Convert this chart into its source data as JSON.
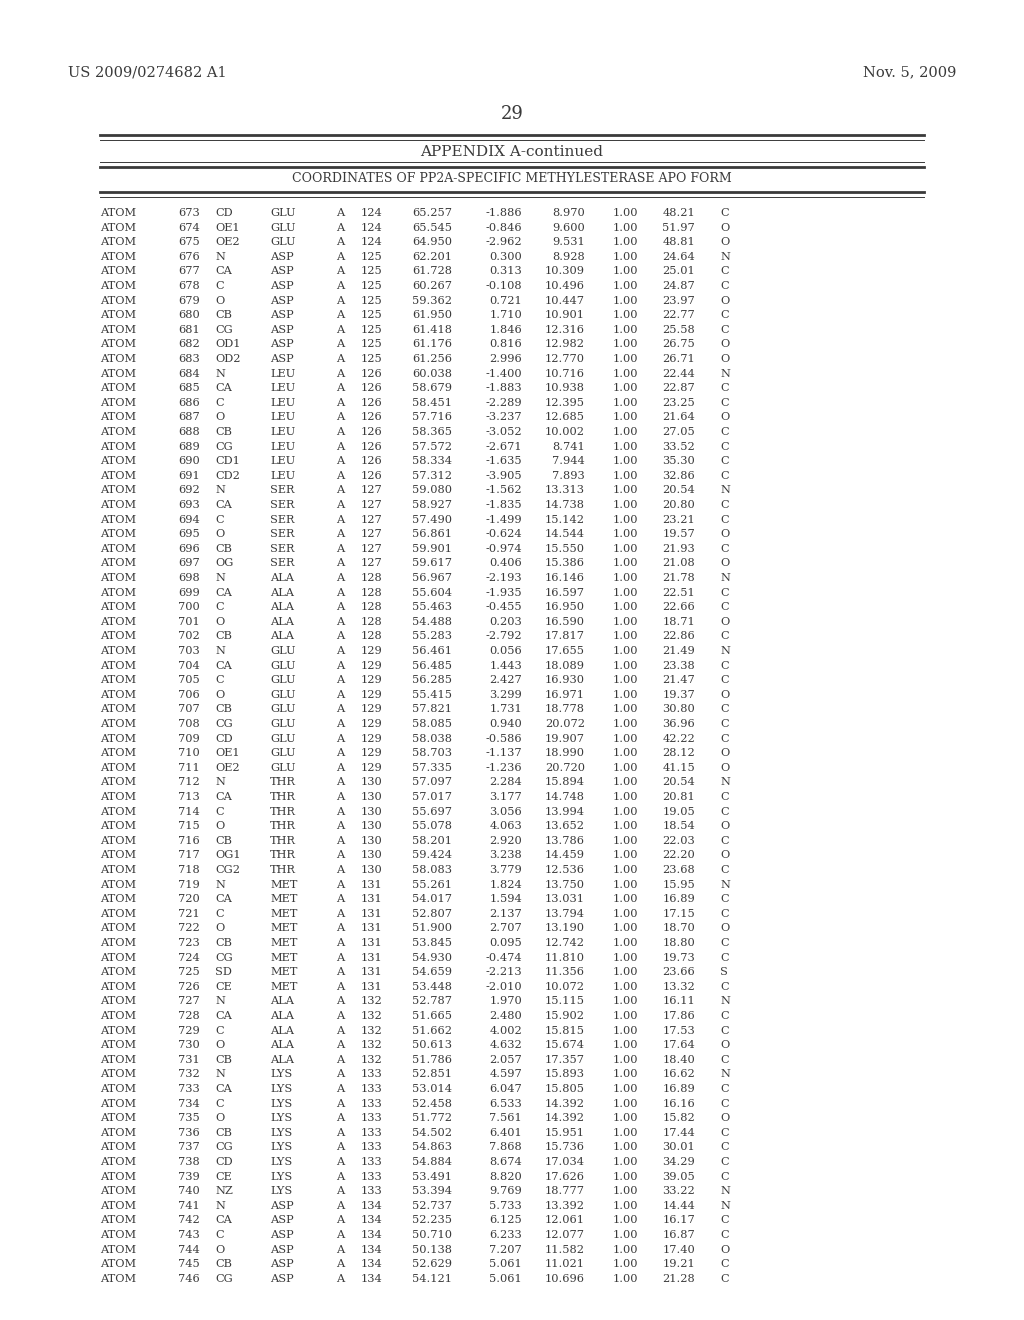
{
  "header_left": "US 2009/0274682 A1",
  "header_right": "Nov. 5, 2009",
  "page_number": "29",
  "appendix_title": "APPENDIX A-continued",
  "table_title": "COORDINATES OF PP2A-SPECIFIC METHYLESTERASE APO FORM",
  "bg_color": "#ffffff",
  "text_color": "#3a3a3a",
  "rows": [
    [
      "ATOM",
      "673",
      "CD",
      "GLU",
      "A",
      "124",
      "65.257",
      "-1.886",
      "8.970",
      "1.00",
      "48.21",
      "C"
    ],
    [
      "ATOM",
      "674",
      "OE1",
      "GLU",
      "A",
      "124",
      "65.545",
      "-0.846",
      "9.600",
      "1.00",
      "51.97",
      "O"
    ],
    [
      "ATOM",
      "675",
      "OE2",
      "GLU",
      "A",
      "124",
      "64.950",
      "-2.962",
      "9.531",
      "1.00",
      "48.81",
      "O"
    ],
    [
      "ATOM",
      "676",
      "N",
      "ASP",
      "A",
      "125",
      "62.201",
      "0.300",
      "8.928",
      "1.00",
      "24.64",
      "N"
    ],
    [
      "ATOM",
      "677",
      "CA",
      "ASP",
      "A",
      "125",
      "61.728",
      "0.313",
      "10.309",
      "1.00",
      "25.01",
      "C"
    ],
    [
      "ATOM",
      "678",
      "C",
      "ASP",
      "A",
      "125",
      "60.267",
      "-0.108",
      "10.496",
      "1.00",
      "24.87",
      "C"
    ],
    [
      "ATOM",
      "679",
      "O",
      "ASP",
      "A",
      "125",
      "59.362",
      "0.721",
      "10.447",
      "1.00",
      "23.97",
      "O"
    ],
    [
      "ATOM",
      "680",
      "CB",
      "ASP",
      "A",
      "125",
      "61.950",
      "1.710",
      "10.901",
      "1.00",
      "22.77",
      "C"
    ],
    [
      "ATOM",
      "681",
      "CG",
      "ASP",
      "A",
      "125",
      "61.418",
      "1.846",
      "12.316",
      "1.00",
      "25.58",
      "C"
    ],
    [
      "ATOM",
      "682",
      "OD1",
      "ASP",
      "A",
      "125",
      "61.176",
      "0.816",
      "12.982",
      "1.00",
      "26.75",
      "O"
    ],
    [
      "ATOM",
      "683",
      "OD2",
      "ASP",
      "A",
      "125",
      "61.256",
      "2.996",
      "12.770",
      "1.00",
      "26.71",
      "O"
    ],
    [
      "ATOM",
      "684",
      "N",
      "LEU",
      "A",
      "126",
      "60.038",
      "-1.400",
      "10.716",
      "1.00",
      "22.44",
      "N"
    ],
    [
      "ATOM",
      "685",
      "CA",
      "LEU",
      "A",
      "126",
      "58.679",
      "-1.883",
      "10.938",
      "1.00",
      "22.87",
      "C"
    ],
    [
      "ATOM",
      "686",
      "C",
      "LEU",
      "A",
      "126",
      "58.451",
      "-2.289",
      "12.395",
      "1.00",
      "23.25",
      "C"
    ],
    [
      "ATOM",
      "687",
      "O",
      "LEU",
      "A",
      "126",
      "57.716",
      "-3.237",
      "12.685",
      "1.00",
      "21.64",
      "O"
    ],
    [
      "ATOM",
      "688",
      "CB",
      "LEU",
      "A",
      "126",
      "58.365",
      "-3.052",
      "10.002",
      "1.00",
      "27.05",
      "C"
    ],
    [
      "ATOM",
      "689",
      "CG",
      "LEU",
      "A",
      "126",
      "57.572",
      "-2.671",
      "8.741",
      "1.00",
      "33.52",
      "C"
    ],
    [
      "ATOM",
      "690",
      "CD1",
      "LEU",
      "A",
      "126",
      "58.334",
      "-1.635",
      "7.944",
      "1.00",
      "35.30",
      "C"
    ],
    [
      "ATOM",
      "691",
      "CD2",
      "LEU",
      "A",
      "126",
      "57.312",
      "-3.905",
      "7.893",
      "1.00",
      "32.86",
      "C"
    ],
    [
      "ATOM",
      "692",
      "N",
      "SER",
      "A",
      "127",
      "59.080",
      "-1.562",
      "13.313",
      "1.00",
      "20.54",
      "N"
    ],
    [
      "ATOM",
      "693",
      "CA",
      "SER",
      "A",
      "127",
      "58.927",
      "-1.835",
      "14.738",
      "1.00",
      "20.80",
      "C"
    ],
    [
      "ATOM",
      "694",
      "C",
      "SER",
      "A",
      "127",
      "57.490",
      "-1.499",
      "15.142",
      "1.00",
      "23.21",
      "C"
    ],
    [
      "ATOM",
      "695",
      "O",
      "SER",
      "A",
      "127",
      "56.861",
      "-0.624",
      "14.544",
      "1.00",
      "19.57",
      "O"
    ],
    [
      "ATOM",
      "696",
      "CB",
      "SER",
      "A",
      "127",
      "59.901",
      "-0.974",
      "15.550",
      "1.00",
      "21.93",
      "C"
    ],
    [
      "ATOM",
      "697",
      "OG",
      "SER",
      "A",
      "127",
      "59.617",
      "0.406",
      "15.386",
      "1.00",
      "21.08",
      "O"
    ],
    [
      "ATOM",
      "698",
      "N",
      "ALA",
      "A",
      "128",
      "56.967",
      "-2.193",
      "16.146",
      "1.00",
      "21.78",
      "N"
    ],
    [
      "ATOM",
      "699",
      "CA",
      "ALA",
      "A",
      "128",
      "55.604",
      "-1.935",
      "16.597",
      "1.00",
      "22.51",
      "C"
    ],
    [
      "ATOM",
      "700",
      "C",
      "ALA",
      "A",
      "128",
      "55.463",
      "-0.455",
      "16.950",
      "1.00",
      "22.66",
      "C"
    ],
    [
      "ATOM",
      "701",
      "O",
      "ALA",
      "A",
      "128",
      "54.488",
      "0.203",
      "16.590",
      "1.00",
      "18.71",
      "O"
    ],
    [
      "ATOM",
      "702",
      "CB",
      "ALA",
      "A",
      "128",
      "55.283",
      "-2.792",
      "17.817",
      "1.00",
      "22.86",
      "C"
    ],
    [
      "ATOM",
      "703",
      "N",
      "GLU",
      "A",
      "129",
      "56.461",
      "0.056",
      "17.655",
      "1.00",
      "21.49",
      "N"
    ],
    [
      "ATOM",
      "704",
      "CA",
      "GLU",
      "A",
      "129",
      "56.485",
      "1.443",
      "18.089",
      "1.00",
      "23.38",
      "C"
    ],
    [
      "ATOM",
      "705",
      "C",
      "GLU",
      "A",
      "129",
      "56.285",
      "2.427",
      "16.930",
      "1.00",
      "21.47",
      "C"
    ],
    [
      "ATOM",
      "706",
      "O",
      "GLU",
      "A",
      "129",
      "55.415",
      "3.299",
      "16.971",
      "1.00",
      "19.37",
      "O"
    ],
    [
      "ATOM",
      "707",
      "CB",
      "GLU",
      "A",
      "129",
      "57.821",
      "1.731",
      "18.778",
      "1.00",
      "30.80",
      "C"
    ],
    [
      "ATOM",
      "708",
      "CG",
      "GLU",
      "A",
      "129",
      "58.085",
      "0.940",
      "20.072",
      "1.00",
      "36.96",
      "C"
    ],
    [
      "ATOM",
      "709",
      "CD",
      "GLU",
      "A",
      "129",
      "58.038",
      "-0.586",
      "19.907",
      "1.00",
      "42.22",
      "C"
    ],
    [
      "ATOM",
      "710",
      "OE1",
      "GLU",
      "A",
      "129",
      "58.703",
      "-1.137",
      "18.990",
      "1.00",
      "28.12",
      "O"
    ],
    [
      "ATOM",
      "711",
      "OE2",
      "GLU",
      "A",
      "129",
      "57.335",
      "-1.236",
      "20.720",
      "1.00",
      "41.15",
      "O"
    ],
    [
      "ATOM",
      "712",
      "N",
      "THR",
      "A",
      "130",
      "57.097",
      "2.284",
      "15.894",
      "1.00",
      "20.54",
      "N"
    ],
    [
      "ATOM",
      "713",
      "CA",
      "THR",
      "A",
      "130",
      "57.017",
      "3.177",
      "14.748",
      "1.00",
      "20.81",
      "C"
    ],
    [
      "ATOM",
      "714",
      "C",
      "THR",
      "A",
      "130",
      "55.697",
      "3.056",
      "13.994",
      "1.00",
      "19.05",
      "C"
    ],
    [
      "ATOM",
      "715",
      "O",
      "THR",
      "A",
      "130",
      "55.078",
      "4.063",
      "13.652",
      "1.00",
      "18.54",
      "O"
    ],
    [
      "ATOM",
      "716",
      "CB",
      "THR",
      "A",
      "130",
      "58.201",
      "2.920",
      "13.786",
      "1.00",
      "22.03",
      "C"
    ],
    [
      "ATOM",
      "717",
      "OG1",
      "THR",
      "A",
      "130",
      "59.424",
      "3.238",
      "14.459",
      "1.00",
      "22.20",
      "O"
    ],
    [
      "ATOM",
      "718",
      "CG2",
      "THR",
      "A",
      "130",
      "58.083",
      "3.779",
      "12.536",
      "1.00",
      "23.68",
      "C"
    ],
    [
      "ATOM",
      "719",
      "N",
      "MET",
      "A",
      "131",
      "55.261",
      "1.824",
      "13.750",
      "1.00",
      "15.95",
      "N"
    ],
    [
      "ATOM",
      "720",
      "CA",
      "MET",
      "A",
      "131",
      "54.017",
      "1.594",
      "13.031",
      "1.00",
      "16.89",
      "C"
    ],
    [
      "ATOM",
      "721",
      "C",
      "MET",
      "A",
      "131",
      "52.807",
      "2.137",
      "13.794",
      "1.00",
      "17.15",
      "C"
    ],
    [
      "ATOM",
      "722",
      "O",
      "MET",
      "A",
      "131",
      "51.900",
      "2.707",
      "13.190",
      "1.00",
      "18.70",
      "O"
    ],
    [
      "ATOM",
      "723",
      "CB",
      "MET",
      "A",
      "131",
      "53.845",
      "0.095",
      "12.742",
      "1.00",
      "18.80",
      "C"
    ],
    [
      "ATOM",
      "724",
      "CG",
      "MET",
      "A",
      "131",
      "54.930",
      "-0.474",
      "11.810",
      "1.00",
      "19.73",
      "C"
    ],
    [
      "ATOM",
      "725",
      "SD",
      "MET",
      "A",
      "131",
      "54.659",
      "-2.213",
      "11.356",
      "1.00",
      "23.66",
      "S"
    ],
    [
      "ATOM",
      "726",
      "CE",
      "MET",
      "A",
      "131",
      "53.448",
      "-2.010",
      "10.072",
      "1.00",
      "13.32",
      "C"
    ],
    [
      "ATOM",
      "727",
      "N",
      "ALA",
      "A",
      "132",
      "52.787",
      "1.970",
      "15.115",
      "1.00",
      "16.11",
      "N"
    ],
    [
      "ATOM",
      "728",
      "CA",
      "ALA",
      "A",
      "132",
      "51.665",
      "2.480",
      "15.902",
      "1.00",
      "17.86",
      "C"
    ],
    [
      "ATOM",
      "729",
      "C",
      "ALA",
      "A",
      "132",
      "51.662",
      "4.002",
      "15.815",
      "1.00",
      "17.53",
      "C"
    ],
    [
      "ATOM",
      "730",
      "O",
      "ALA",
      "A",
      "132",
      "50.613",
      "4.632",
      "15.674",
      "1.00",
      "17.64",
      "O"
    ],
    [
      "ATOM",
      "731",
      "CB",
      "ALA",
      "A",
      "132",
      "51.786",
      "2.057",
      "17.357",
      "1.00",
      "18.40",
      "C"
    ],
    [
      "ATOM",
      "732",
      "N",
      "LYS",
      "A",
      "133",
      "52.851",
      "4.597",
      "15.893",
      "1.00",
      "16.62",
      "N"
    ],
    [
      "ATOM",
      "733",
      "CA",
      "LYS",
      "A",
      "133",
      "53.014",
      "6.047",
      "15.805",
      "1.00",
      "16.89",
      "C"
    ],
    [
      "ATOM",
      "734",
      "C",
      "LYS",
      "A",
      "133",
      "52.458",
      "6.533",
      "14.392",
      "1.00",
      "16.16",
      "C"
    ],
    [
      "ATOM",
      "735",
      "O",
      "LYS",
      "A",
      "133",
      "51.772",
      "7.561",
      "14.392",
      "1.00",
      "15.82",
      "O"
    ],
    [
      "ATOM",
      "736",
      "CB",
      "LYS",
      "A",
      "133",
      "54.502",
      "6.401",
      "15.951",
      "1.00",
      "17.44",
      "C"
    ],
    [
      "ATOM",
      "737",
      "CG",
      "LYS",
      "A",
      "133",
      "54.863",
      "7.868",
      "15.736",
      "1.00",
      "30.01",
      "C"
    ],
    [
      "ATOM",
      "738",
      "CD",
      "LYS",
      "A",
      "133",
      "54.884",
      "8.674",
      "17.034",
      "1.00",
      "34.29",
      "C"
    ],
    [
      "ATOM",
      "739",
      "CE",
      "LYS",
      "A",
      "133",
      "53.491",
      "8.820",
      "17.626",
      "1.00",
      "39.05",
      "C"
    ],
    [
      "ATOM",
      "740",
      "NZ",
      "LYS",
      "A",
      "133",
      "53.394",
      "9.769",
      "18.777",
      "1.00",
      "33.22",
      "N"
    ],
    [
      "ATOM",
      "741",
      "N",
      "ASP",
      "A",
      "134",
      "52.737",
      "5.733",
      "13.392",
      "1.00",
      "14.44",
      "N"
    ],
    [
      "ATOM",
      "742",
      "CA",
      "ASP",
      "A",
      "134",
      "52.235",
      "6.125",
      "12.061",
      "1.00",
      "16.17",
      "C"
    ],
    [
      "ATOM",
      "743",
      "C",
      "ASP",
      "A",
      "134",
      "50.710",
      "6.233",
      "12.077",
      "1.00",
      "16.87",
      "C"
    ],
    [
      "ATOM",
      "744",
      "O",
      "ASP",
      "A",
      "134",
      "50.138",
      "7.207",
      "11.582",
      "1.00",
      "17.40",
      "O"
    ],
    [
      "ATOM",
      "745",
      "CB",
      "ASP",
      "A",
      "134",
      "52.629",
      "5.061",
      "11.021",
      "1.00",
      "19.21",
      "C"
    ],
    [
      "ATOM",
      "746",
      "CG",
      "ASP",
      "A",
      "134",
      "54.121",
      "5.061",
      "10.696",
      "1.00",
      "21.28",
      "C"
    ]
  ]
}
